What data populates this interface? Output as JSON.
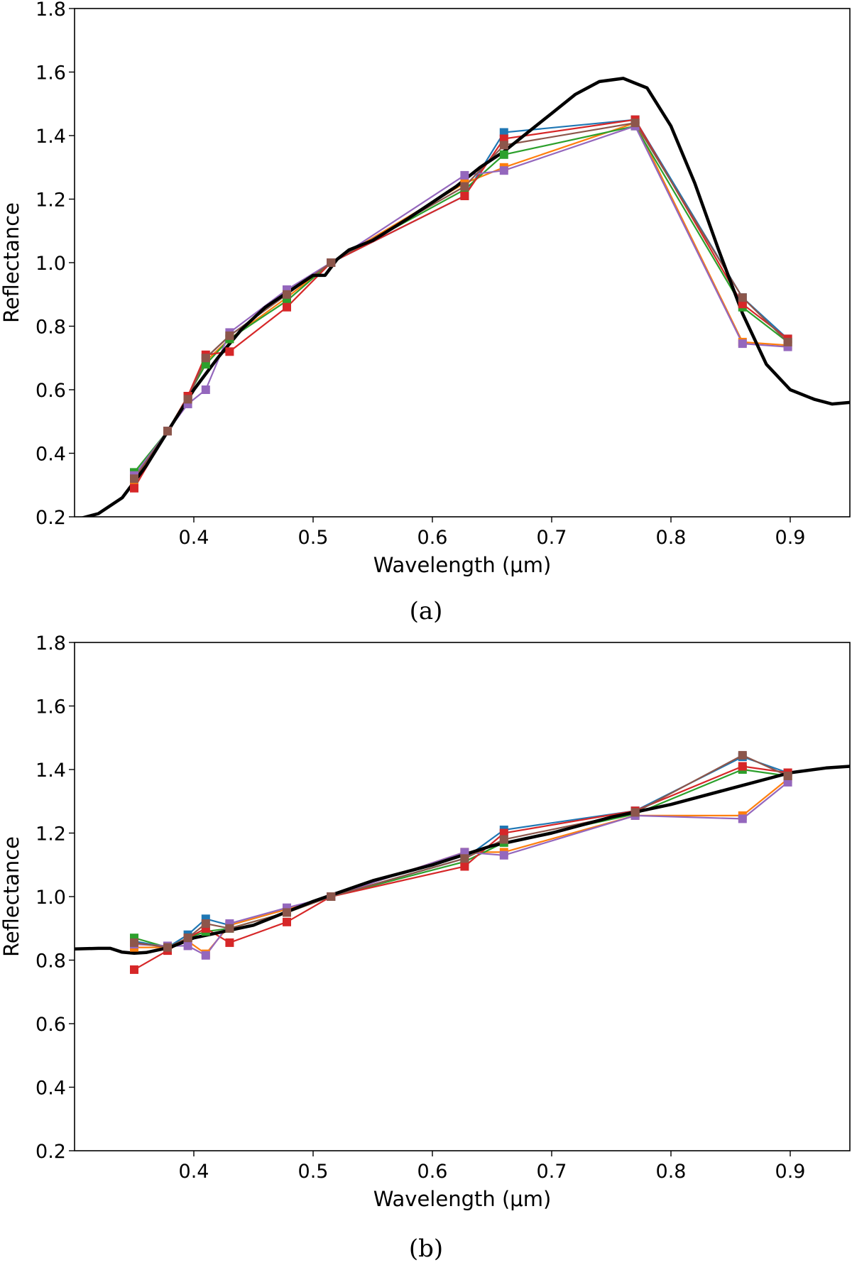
{
  "chart_data": [
    {
      "type": "line",
      "caption": "(a)",
      "xlabel": "Wavelength (μm)",
      "ylabel": "Reflectance",
      "xlim": [
        0.3,
        0.95
      ],
      "ylim": [
        0.2,
        1.8
      ],
      "xticks": [
        "0.4",
        "0.5",
        "0.6",
        "0.7",
        "0.8",
        "0.9"
      ],
      "yticks": [
        "0.2",
        "0.4",
        "0.6",
        "0.8",
        "1.0",
        "1.2",
        "1.4",
        "1.6",
        "1.8"
      ],
      "x": [
        0.35,
        0.378,
        0.395,
        0.41,
        0.43,
        0.478,
        0.515,
        0.627,
        0.66,
        0.77,
        0.86,
        0.898
      ],
      "series": [
        {
          "name": "blue",
          "color": "#1f77b4",
          "values": [
            0.32,
            0.47,
            0.58,
            0.7,
            0.77,
            0.9,
            1.0,
            1.21,
            1.41,
            1.45,
            0.89,
            0.76
          ]
        },
        {
          "name": "orange",
          "color": "#ff7f0e",
          "values": [
            0.31,
            0.47,
            0.58,
            0.69,
            0.76,
            0.89,
            1.0,
            1.25,
            1.3,
            1.44,
            0.75,
            0.74
          ]
        },
        {
          "name": "green",
          "color": "#2ca02c",
          "values": [
            0.34,
            0.47,
            0.58,
            0.68,
            0.76,
            0.88,
            1.0,
            1.23,
            1.34,
            1.43,
            0.86,
            0.75
          ]
        },
        {
          "name": "red",
          "color": "#d62728",
          "values": [
            0.29,
            0.47,
            0.58,
            0.71,
            0.72,
            0.86,
            1.0,
            1.21,
            1.39,
            1.45,
            0.87,
            0.76
          ]
        },
        {
          "name": "purple",
          "color": "#9467bd",
          "values": [
            0.33,
            0.47,
            0.555,
            0.6,
            0.78,
            0.915,
            1.0,
            1.275,
            1.29,
            1.43,
            0.745,
            0.735
          ]
        },
        {
          "name": "brown",
          "color": "#8c564b",
          "values": [
            0.32,
            0.47,
            0.57,
            0.7,
            0.77,
            0.9,
            1.0,
            1.24,
            1.37,
            1.44,
            0.89,
            0.75
          ]
        }
      ],
      "reference": {
        "color": "#000000",
        "x": [
          0.3,
          0.32,
          0.34,
          0.36,
          0.38,
          0.4,
          0.42,
          0.44,
          0.46,
          0.48,
          0.5,
          0.51,
          0.52,
          0.53,
          0.55,
          0.58,
          0.6,
          0.62,
          0.64,
          0.66,
          0.68,
          0.7,
          0.72,
          0.74,
          0.76,
          0.78,
          0.8,
          0.82,
          0.84,
          0.86,
          0.88,
          0.9,
          0.92,
          0.935,
          0.95
        ],
        "y": [
          0.19,
          0.21,
          0.26,
          0.36,
          0.48,
          0.6,
          0.7,
          0.79,
          0.86,
          0.91,
          0.96,
          0.96,
          1.01,
          1.04,
          1.07,
          1.14,
          1.19,
          1.24,
          1.3,
          1.35,
          1.41,
          1.47,
          1.53,
          1.57,
          1.58,
          1.55,
          1.43,
          1.25,
          1.04,
          0.84,
          0.68,
          0.6,
          0.57,
          0.555,
          0.56
        ]
      }
    },
    {
      "type": "line",
      "caption": "(b)",
      "xlabel": "Wavelength (μm)",
      "ylabel": "Reflectance",
      "xlim": [
        0.3,
        0.95
      ],
      "ylim": [
        0.2,
        1.8
      ],
      "xticks": [
        "0.4",
        "0.5",
        "0.6",
        "0.7",
        "0.8",
        "0.9"
      ],
      "yticks": [
        "0.2",
        "0.4",
        "0.6",
        "0.8",
        "1.0",
        "1.2",
        "1.4",
        "1.6",
        "1.8"
      ],
      "x": [
        0.35,
        0.378,
        0.395,
        0.41,
        0.43,
        0.478,
        0.515,
        0.627,
        0.66,
        0.77,
        0.86,
        0.898
      ],
      "series": [
        {
          "name": "blue",
          "color": "#1f77b4",
          "values": [
            0.86,
            0.84,
            0.88,
            0.93,
            0.91,
            0.96,
            1.0,
            1.12,
            1.21,
            1.27,
            1.44,
            1.39
          ]
        },
        {
          "name": "orange",
          "color": "#ff7f0e",
          "values": [
            0.84,
            0.84,
            0.86,
            0.82,
            0.91,
            0.96,
            1.0,
            1.14,
            1.14,
            1.255,
            1.255,
            1.37
          ]
        },
        {
          "name": "green",
          "color": "#2ca02c",
          "values": [
            0.87,
            0.84,
            0.87,
            0.89,
            0.9,
            0.95,
            1.0,
            1.11,
            1.17,
            1.26,
            1.4,
            1.38
          ]
        },
        {
          "name": "red",
          "color": "#d62728",
          "values": [
            0.77,
            0.83,
            0.87,
            0.9,
            0.855,
            0.92,
            1.0,
            1.095,
            1.2,
            1.27,
            1.41,
            1.39
          ]
        },
        {
          "name": "purple",
          "color": "#9467bd",
          "values": [
            0.85,
            0.845,
            0.845,
            0.815,
            0.915,
            0.965,
            1.0,
            1.14,
            1.13,
            1.255,
            1.245,
            1.36
          ]
        },
        {
          "name": "brown",
          "color": "#8c564b",
          "values": [
            0.855,
            0.84,
            0.87,
            0.915,
            0.9,
            0.95,
            1.0,
            1.12,
            1.18,
            1.265,
            1.445,
            1.38
          ]
        }
      ],
      "reference": {
        "color": "#000000",
        "x": [
          0.3,
          0.32,
          0.33,
          0.34,
          0.35,
          0.36,
          0.38,
          0.4,
          0.45,
          0.5,
          0.55,
          0.6,
          0.65,
          0.7,
          0.75,
          0.8,
          0.85,
          0.9,
          0.93,
          0.95
        ],
        "y": [
          0.835,
          0.837,
          0.837,
          0.825,
          0.822,
          0.824,
          0.84,
          0.87,
          0.91,
          0.985,
          1.05,
          1.1,
          1.16,
          1.2,
          1.25,
          1.29,
          1.34,
          1.39,
          1.405,
          1.41
        ]
      }
    }
  ]
}
